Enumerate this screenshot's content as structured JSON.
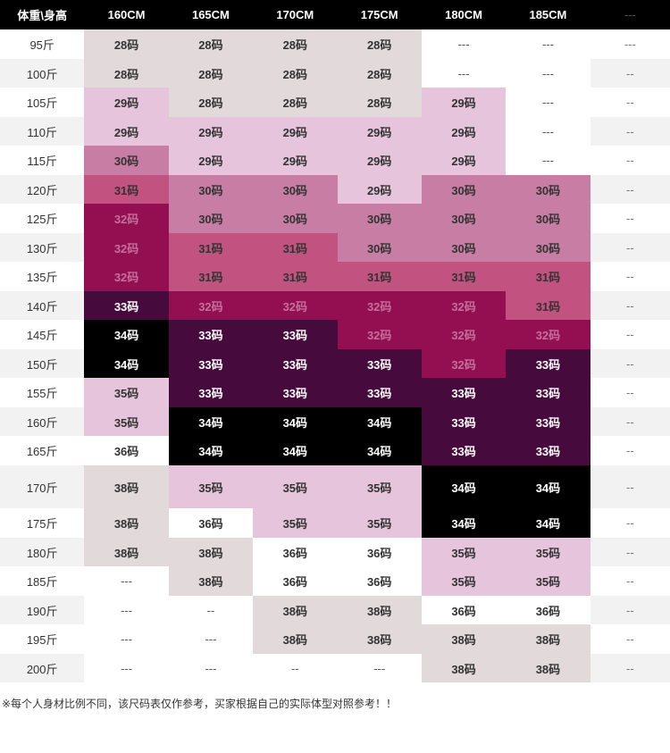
{
  "header": {
    "corner_label": "体重\\身高",
    "heights": [
      "160CM",
      "165CM",
      "170CM",
      "175CM",
      "180CM",
      "185CM"
    ],
    "extra_label": "---"
  },
  "legend_colors": {
    "gray": "#e2d9db",
    "pale_pink": "#e6c4dc",
    "light_rose": "#c87ea4",
    "rose": "#c2527f",
    "magenta": "#930f52",
    "dark_purple": "#460a3d",
    "black": "#000000"
  },
  "rows": [
    {
      "weight": "95斤",
      "sizes": [
        "28码",
        "28码",
        "28码",
        "28码",
        "---",
        "---"
      ],
      "extra": "---"
    },
    {
      "weight": "100斤",
      "sizes": [
        "28码",
        "28码",
        "28码",
        "28码",
        "---",
        "---"
      ],
      "extra": "--"
    },
    {
      "weight": "105斤",
      "sizes": [
        "29码",
        "28码",
        "28码",
        "28码",
        "29码",
        "---"
      ],
      "extra": "--"
    },
    {
      "weight": "110斤",
      "sizes": [
        "29码",
        "29码",
        "29码",
        "29码",
        "29码",
        "---"
      ],
      "extra": "--"
    },
    {
      "weight": "115斤",
      "sizes": [
        "30码",
        "29码",
        "29码",
        "29码",
        "29码",
        "---"
      ],
      "extra": "--"
    },
    {
      "weight": "120斤",
      "sizes": [
        "31码",
        "30码",
        "30码",
        "29码",
        "30码",
        "30码"
      ],
      "extra": "--"
    },
    {
      "weight": "125斤",
      "sizes": [
        "32码",
        "30码",
        "30码",
        "30码",
        "30码",
        "30码"
      ],
      "extra": "--"
    },
    {
      "weight": "130斤",
      "sizes": [
        "32码",
        "31码",
        "31码",
        "30码",
        "30码",
        "30码"
      ],
      "extra": "--"
    },
    {
      "weight": "135斤",
      "sizes": [
        "32码",
        "31码",
        "31码",
        "31码",
        "31码",
        "31码"
      ],
      "extra": "--"
    },
    {
      "weight": "140斤",
      "sizes": [
        "33码",
        "32码",
        "32码",
        "32码",
        "32码",
        "31码"
      ],
      "extra": "--"
    },
    {
      "weight": "145斤",
      "sizes": [
        "34码",
        "33码",
        "33码",
        "32码",
        "32码",
        "32码"
      ],
      "extra": "--"
    },
    {
      "weight": "150斤",
      "sizes": [
        "34码",
        "33码",
        "33码",
        "33码",
        "32码",
        "33码"
      ],
      "extra": "--"
    },
    {
      "weight": "155斤",
      "sizes": [
        "35码",
        "33码",
        "33码",
        "33码",
        "33码",
        "33码"
      ],
      "extra": "--"
    },
    {
      "weight": "160斤",
      "sizes": [
        "35码",
        "34码",
        "34码",
        "34码",
        "33码",
        "33码"
      ],
      "extra": "--"
    },
    {
      "weight": "165斤",
      "sizes": [
        "36码",
        "34码",
        "34码",
        "34码",
        "33码",
        "33码"
      ],
      "extra": "--"
    },
    {
      "weight": "170斤",
      "sizes": [
        "38码",
        "35码",
        "35码",
        "35码",
        "34码",
        "34码"
      ],
      "extra": "--"
    },
    {
      "weight": "175斤",
      "sizes": [
        "38码",
        "36码",
        "35码",
        "35码",
        "34码",
        "34码"
      ],
      "extra": "--"
    },
    {
      "weight": "180斤",
      "sizes": [
        "38码",
        "38码",
        "36码",
        "36码",
        "35码",
        "35码"
      ],
      "extra": "--"
    },
    {
      "weight": "185斤",
      "sizes": [
        "---",
        "38码",
        "36码",
        "36码",
        "35码",
        "35码"
      ],
      "extra": "--"
    },
    {
      "weight": "190斤",
      "sizes": [
        "---",
        "--",
        "38码",
        "38码",
        "36码",
        "36码"
      ],
      "extra": "--"
    },
    {
      "weight": "195斤",
      "sizes": [
        "---",
        "---",
        "38码",
        "38码",
        "38码",
        "38码"
      ],
      "extra": "--"
    },
    {
      "weight": "200斤",
      "sizes": [
        "---",
        "---",
        "--",
        "---",
        "38码",
        "38码"
      ],
      "extra": "--"
    }
  ],
  "footnote": "※每个人身材比例不同，该尺码表仅作参考，买家根据自己的实际体型对照参考！！"
}
